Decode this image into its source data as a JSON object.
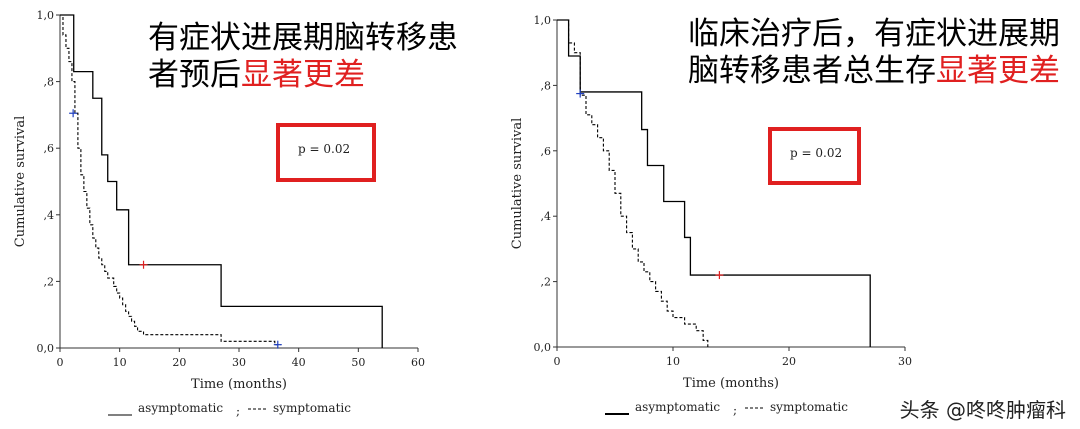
{
  "chart_data": [
    {
      "type": "line",
      "subtype": "kaplan-meier",
      "headline_line1": "有症状进展期脑转移患",
      "headline_line2": "者预后",
      "headline_red": "显著更差",
      "pvalue_text": "p = 0.02",
      "ylabel": "Cumulative survival",
      "xlabel": "Time (months)",
      "xlim": [
        0,
        60
      ],
      "ylim": [
        0,
        1
      ],
      "xticks": [
        0,
        10,
        20,
        30,
        40,
        50,
        60
      ],
      "yticks": [
        0,
        0.2,
        0.4,
        0.6,
        0.8,
        1.0
      ],
      "xtick_labels": [
        "0",
        "10",
        "20",
        "30",
        "40",
        "50",
        "60"
      ],
      "ytick_labels": [
        "0,0",
        ",2",
        ",4",
        ",6",
        ",8",
        "1,0"
      ],
      "legend_entries": [
        "asymptomatic",
        "symptomatic"
      ],
      "legend_separator": ";",
      "series": [
        {
          "name": "asymptomatic",
          "style": "solid",
          "color": "#000000",
          "steps": [
            [
              0,
              1.0
            ],
            [
              2.3,
              0.83
            ],
            [
              5.5,
              0.75
            ],
            [
              7,
              0.58
            ],
            [
              8,
              0.5
            ],
            [
              9.5,
              0.415
            ],
            [
              11.5,
              0.25
            ],
            [
              27,
              0.125
            ],
            [
              54,
              0.0
            ]
          ],
          "end_x": 54,
          "censor": [
            [
              14,
              0.25
            ]
          ],
          "censor_color": "#e02020"
        },
        {
          "name": "symptomatic",
          "style": "dashed",
          "color": "#000000",
          "steps": [
            [
              0,
              1.0
            ],
            [
              0.5,
              0.94
            ],
            [
              1,
              0.9
            ],
            [
              1.5,
              0.86
            ],
            [
              2,
              0.8
            ],
            [
              2.5,
              0.705
            ],
            [
              3,
              0.6
            ],
            [
              3.5,
              0.52
            ],
            [
              4,
              0.47
            ],
            [
              4.5,
              0.42
            ],
            [
              5,
              0.37
            ],
            [
              5.5,
              0.33
            ],
            [
              6,
              0.3
            ],
            [
              6.5,
              0.27
            ],
            [
              7,
              0.25
            ],
            [
              7.5,
              0.23
            ],
            [
              8,
              0.21
            ],
            [
              9,
              0.185
            ],
            [
              9.5,
              0.165
            ],
            [
              10,
              0.15
            ],
            [
              10.5,
              0.13
            ],
            [
              11,
              0.11
            ],
            [
              11.5,
              0.095
            ],
            [
              12,
              0.08
            ],
            [
              12.5,
              0.065
            ],
            [
              13,
              0.05
            ],
            [
              14,
              0.04
            ],
            [
              27,
              0.02
            ],
            [
              36,
              0.01
            ]
          ],
          "end_x": 37,
          "censor": [
            [
              2.2,
              0.705
            ],
            [
              36.5,
              0.01
            ]
          ],
          "censor_color": "#2040c0"
        }
      ]
    },
    {
      "type": "line",
      "subtype": "kaplan-meier",
      "headline_line1": "临床治疗后，有症状进展期",
      "headline_line2": "脑转移患者总生存",
      "headline_red": "显著更差",
      "pvalue_text": "p = 0.02",
      "ylabel": "Cumulative survival",
      "xlabel": "Time (months)",
      "xlim": [
        0,
        30
      ],
      "ylim": [
        0,
        1
      ],
      "xticks": [
        0,
        10,
        20,
        30
      ],
      "yticks": [
        0,
        0.2,
        0.4,
        0.6,
        0.8,
        1.0
      ],
      "xtick_labels": [
        "0",
        "10",
        "20",
        "30"
      ],
      "ytick_labels": [
        "0,0",
        ",2",
        ",4",
        ",6",
        ",8",
        "1,0"
      ],
      "legend_entries": [
        "asymptomatic",
        "symptomatic"
      ],
      "legend_separator": ";",
      "series": [
        {
          "name": "asymptomatic",
          "style": "solid",
          "color": "#000000",
          "steps": [
            [
              0,
              1.0
            ],
            [
              1,
              0.89
            ],
            [
              2,
              0.78
            ],
            [
              7.3,
              0.665
            ],
            [
              7.8,
              0.555
            ],
            [
              9.2,
              0.445
            ],
            [
              11,
              0.335
            ],
            [
              11.5,
              0.22
            ],
            [
              27,
              0.0
            ]
          ],
          "end_x": 27,
          "censor": [
            [
              14,
              0.22
            ]
          ],
          "censor_color": "#e02020"
        },
        {
          "name": "symptomatic",
          "style": "dashed",
          "color": "#000000",
          "steps": [
            [
              0,
              1.0
            ],
            [
              1,
              0.93
            ],
            [
              1.5,
              0.9
            ],
            [
              2,
              0.77
            ],
            [
              2.5,
              0.71
            ],
            [
              3,
              0.68
            ],
            [
              3.5,
              0.64
            ],
            [
              4,
              0.6
            ],
            [
              4.5,
              0.54
            ],
            [
              5,
              0.47
            ],
            [
              5.5,
              0.4
            ],
            [
              6,
              0.35
            ],
            [
              6.5,
              0.3
            ],
            [
              7,
              0.26
            ],
            [
              7.5,
              0.23
            ],
            [
              8,
              0.2
            ],
            [
              8.5,
              0.17
            ],
            [
              9,
              0.14
            ],
            [
              9.5,
              0.11
            ],
            [
              10,
              0.09
            ],
            [
              11,
              0.07
            ],
            [
              12,
              0.05
            ],
            [
              12.6,
              0.02
            ],
            [
              13,
              0.0
            ]
          ],
          "end_x": 13,
          "censor": [
            [
              2,
              0.775
            ]
          ],
          "censor_color": "#2040c0"
        }
      ]
    }
  ],
  "watermark": "头条 @咚咚肿瘤科"
}
